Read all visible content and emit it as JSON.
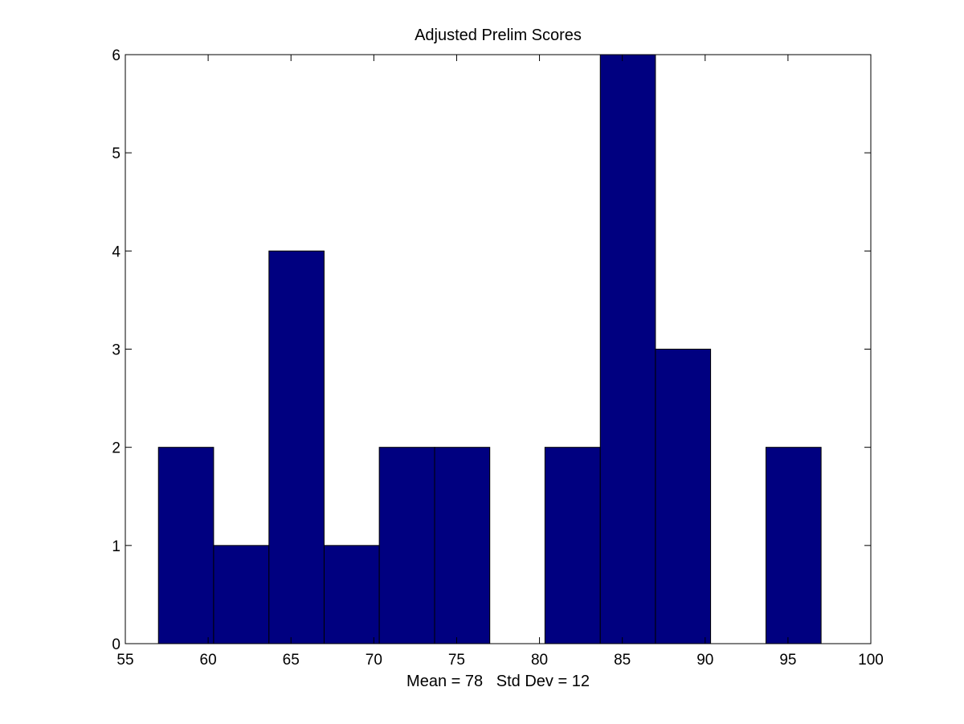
{
  "chart_data": {
    "type": "bar",
    "title": "Adjusted Prelim Scores",
    "xlabel": "Mean = 78   Std Dev = 12",
    "ylabel": "",
    "xlim": [
      55,
      100
    ],
    "ylim": [
      0,
      6
    ],
    "x_ticks": [
      "55",
      "60",
      "65",
      "70",
      "75",
      "80",
      "85",
      "90",
      "95",
      "100"
    ],
    "y_ticks": [
      "0",
      "1",
      "2",
      "3",
      "4",
      "5",
      "6"
    ],
    "grid": false,
    "legend": "none",
    "bar_color": "#000080",
    "edge_color": "#000000",
    "bins": [
      {
        "from": 57.0,
        "to": 60.33,
        "count": 2
      },
      {
        "from": 60.33,
        "to": 63.67,
        "count": 1
      },
      {
        "from": 63.67,
        "to": 67.0,
        "count": 4
      },
      {
        "from": 67.0,
        "to": 70.33,
        "count": 1
      },
      {
        "from": 70.33,
        "to": 73.67,
        "count": 2
      },
      {
        "from": 73.67,
        "to": 77.0,
        "count": 2
      },
      {
        "from": 77.0,
        "to": 80.33,
        "count": 0
      },
      {
        "from": 80.33,
        "to": 83.67,
        "count": 2
      },
      {
        "from": 83.67,
        "to": 87.0,
        "count": 6
      },
      {
        "from": 87.0,
        "to": 90.33,
        "count": 3
      },
      {
        "from": 90.33,
        "to": 93.67,
        "count": 0
      },
      {
        "from": 93.67,
        "to": 97.0,
        "count": 2
      }
    ]
  }
}
